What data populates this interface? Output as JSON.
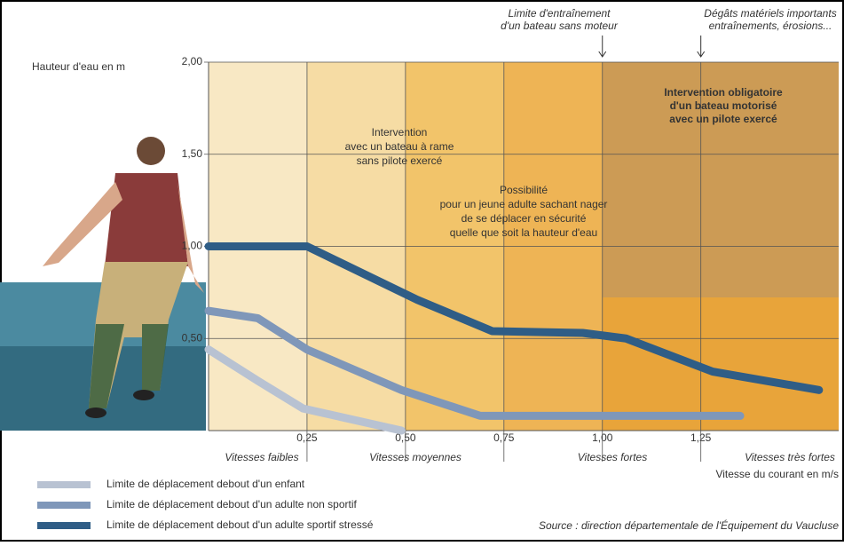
{
  "chart_data": {
    "type": "line",
    "title": "Hauteur d'eau en m",
    "x_label": "Vitesse du courant en m/s",
    "xlim": [
      0,
      1.6
    ],
    "ylim": [
      0,
      2
    ],
    "xticks": [
      {
        "value": 0.25,
        "label": "0,25"
      },
      {
        "value": 0.5,
        "label": "0,50"
      },
      {
        "value": 0.75,
        "label": "0,75"
      },
      {
        "value": 1,
        "label": "1,00"
      },
      {
        "value": 1.25,
        "label": "1,25"
      }
    ],
    "yticks": [
      {
        "value": 0.5,
        "label": "0,50"
      },
      {
        "value": 1,
        "label": "1,00"
      },
      {
        "value": 1.5,
        "label": "1,50"
      },
      {
        "value": 2,
        "label": "2,00"
      }
    ],
    "grid": true,
    "series": [
      {
        "name": "Limite de déplacement debout d'un enfant",
        "color": "#b8c2d2",
        "x": [
          0,
          0.125,
          0.24,
          0.49
        ],
        "values": [
          0.44,
          0.27,
          0.12,
          0
        ]
      },
      {
        "name": "Limite de déplacement debout d'un adulte non sportif",
        "color": "#7f97b9",
        "x": [
          0,
          0.125,
          0.25,
          0.49,
          0.69,
          1.35
        ],
        "values": [
          0.65,
          0.61,
          0.44,
          0.22,
          0.08,
          0.08
        ]
      },
      {
        "name": "Limite de déplacement debout d'un adulte sportif stressé",
        "color": "#2f5d86",
        "x": [
          0,
          0.25,
          0.53,
          0.72,
          0.95,
          1.06,
          1.28,
          1.55
        ],
        "values": [
          1,
          1,
          0.71,
          0.54,
          0.53,
          0.5,
          0.32,
          0.22
        ]
      }
    ],
    "zone_labels": [
      "Vitesses faibles",
      "Vitesses moyennes",
      "Vitesses fortes",
      "Vitesses très fortes"
    ],
    "annotations": [
      [
        "Intervention",
        "avec un bateau à rame",
        "sans pilote exercé"
      ],
      [
        "Possibilité",
        "pour un jeune adulte sachant nager",
        "de se déplacer en sécurité",
        "quelle que soit la hauteur d'eau"
      ],
      [
        "Intervention obligatoire",
        "d'un bateau motorisé",
        "avec un pilote exercé"
      ],
      [
        "Limite d'entraînement",
        "d'un bateau sans moteur"
      ],
      [
        "Dégâts matériels importants",
        "entraînements, érosions..."
      ]
    ],
    "source": "Source : direction départementale de l'Équipement du Vaucluse"
  }
}
